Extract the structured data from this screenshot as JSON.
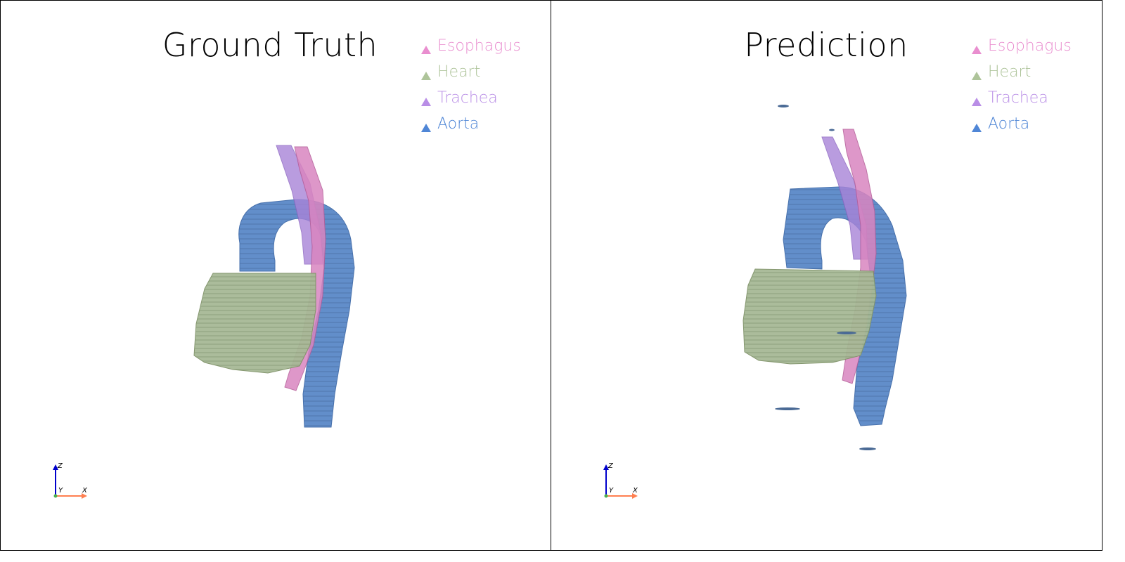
{
  "viewports": [
    {
      "title": "Ground Truth",
      "legend": [
        {
          "label": "Esophagus",
          "color": "#e98ecf"
        },
        {
          "label": "Heart",
          "color": "#aec49a"
        },
        {
          "label": "Trachea",
          "color": "#b98ee6"
        },
        {
          "label": "Aorta",
          "color": "#4f86d6"
        }
      ],
      "axes": {
        "z": "Z",
        "y": "Y",
        "x": "X"
      }
    },
    {
      "title": "Prediction",
      "legend": [
        {
          "label": "Esophagus",
          "color": "#e98ecf"
        },
        {
          "label": "Heart",
          "color": "#aec49a"
        },
        {
          "label": "Trachea",
          "color": "#b98ee6"
        },
        {
          "label": "Aorta",
          "color": "#4f86d6"
        }
      ],
      "axes": {
        "z": "Z",
        "y": "Y",
        "x": "X"
      }
    }
  ],
  "colors": {
    "esophagus": "#d77ab8",
    "heart": "#a3b690",
    "trachea": "#a07fd1",
    "aorta": "#5583c4",
    "axis_z": "#0000cc",
    "axis_x": "#ff7f50",
    "axis_y": "#4caf50"
  }
}
